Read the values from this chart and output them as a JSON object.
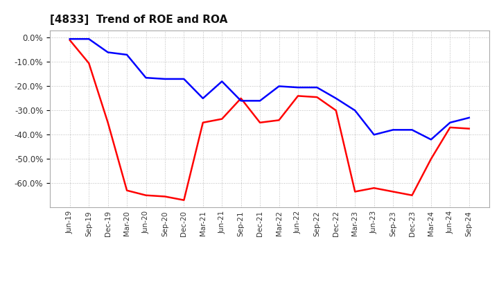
{
  "title": "[4833]  Trend of ROE and ROA",
  "x_labels": [
    "Jun-19",
    "Sep-19",
    "Dec-19",
    "Mar-20",
    "Jun-20",
    "Sep-20",
    "Dec-20",
    "Mar-21",
    "Jun-21",
    "Sep-21",
    "Dec-21",
    "Mar-22",
    "Jun-22",
    "Sep-22",
    "Dec-22",
    "Mar-23",
    "Jun-23",
    "Sep-23",
    "Dec-23",
    "Mar-24",
    "Jun-24",
    "Sep-24"
  ],
  "ROE": [
    -1.0,
    -10.5,
    -35.0,
    -63.0,
    -65.0,
    -65.5,
    -67.0,
    -35.0,
    -33.5,
    -25.0,
    -35.0,
    -34.0,
    -24.0,
    -24.5,
    -30.0,
    -63.5,
    -62.0,
    -63.5,
    -65.0,
    -50.0,
    -37.0,
    -37.5
  ],
  "ROA": [
    -0.5,
    -0.5,
    -6.0,
    -7.0,
    -16.5,
    -17.0,
    -17.0,
    -25.0,
    -18.0,
    -26.0,
    -26.0,
    -20.0,
    -20.5,
    -20.5,
    -25.0,
    -30.0,
    -40.0,
    -38.0,
    -38.0,
    -42.0,
    -35.0,
    -33.0
  ],
  "roe_color": "#ff0000",
  "roa_color": "#0000ff",
  "ylim": [
    -70,
    3
  ],
  "yticks": [
    0,
    -10,
    -20,
    -30,
    -40,
    -50,
    -60
  ],
  "background_color": "#ffffff",
  "plot_bg_color": "#ffffff",
  "grid_color": "#aaaaaa",
  "title_fontsize": 11,
  "legend_fontsize": 10,
  "line_width": 1.8
}
